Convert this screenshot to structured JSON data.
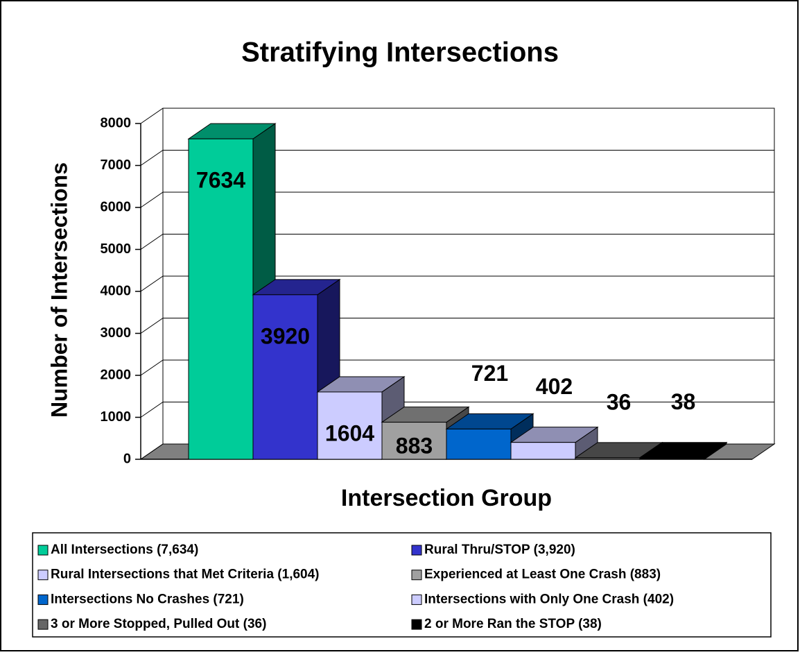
{
  "chart_data": {
    "type": "bar3d",
    "title": "Stratifying Intersections",
    "y_label": "Number of Intersections",
    "x_label": "Intersection Group",
    "categories": [
      null
    ],
    "series": [
      {
        "name": "All Intersections (7,634)",
        "color": "#00cc99",
        "values": [
          7634
        ]
      },
      {
        "name": "Rural Thru/STOP (3,920)",
        "color": "#3333cc",
        "values": [
          3920
        ]
      },
      {
        "name": "Rural Intersections that Met Criteria (1,604)",
        "color": "#ccccff",
        "values": [
          1604
        ]
      },
      {
        "name": "Experienced at Least One Crash (883)",
        "color": "#a0a0a0",
        "values": [
          883
        ]
      },
      {
        "name": "Intersections No Crashes (721)",
        "color": "#0066cc",
        "values": [
          721
        ]
      },
      {
        "name": "Intersections with Only One Crash (402)",
        "color": "#ccccff",
        "values": [
          402
        ]
      },
      {
        "name": "3 or More Stopped, Pulled Out (36)",
        "color": "#666666",
        "values": [
          36
        ]
      },
      {
        "name": "2 or More Ran the STOP (38)",
        "color": "#000000",
        "values": [
          38
        ]
      }
    ],
    "ylim": [
      0,
      8000
    ],
    "yticks": [
      0,
      1000,
      2000,
      3000,
      4000,
      5000,
      6000,
      7000,
      8000
    ],
    "grid": true
  }
}
